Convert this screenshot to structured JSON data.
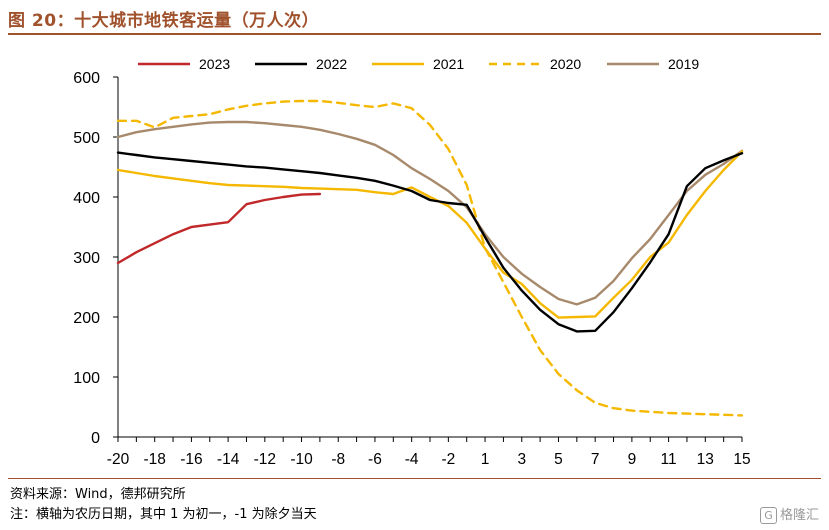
{
  "title": "图 20：十大城市地铁客运量（万人次）",
  "source": "资料来源：Wind，德邦研究所",
  "note": "注：横轴为农历日期，其中 1 为初一，-1 为除夕当天",
  "watermark": {
    "icon": "G",
    "text": "格隆汇"
  },
  "colors": {
    "title": "#a0522d",
    "rule": "#a0522d"
  },
  "chart_data": {
    "type": "line",
    "title": "",
    "xlabel": "",
    "ylabel": "",
    "ylim": [
      0,
      600
    ],
    "yticks": [
      0,
      100,
      200,
      300,
      400,
      500,
      600
    ],
    "xlim": [
      -20,
      15
    ],
    "xtick_labels": [
      "-20",
      "-18",
      "-16",
      "-14",
      "-12",
      "-10",
      "-8",
      "-6",
      "-4",
      "-2",
      "1",
      "3",
      "5",
      "7",
      "9",
      "11",
      "13",
      "15"
    ],
    "grid": false,
    "legend_position": "top",
    "series": [
      {
        "name": "2023",
        "color": "#c0282a",
        "dash": false,
        "x": [
          -20,
          -19,
          -18,
          -17,
          -16,
          -15,
          -14,
          -13,
          -12,
          -11,
          -10,
          -9
        ],
        "y": [
          290,
          308,
          323,
          338,
          350,
          354,
          358,
          388,
          395,
          400,
          404,
          405
        ]
      },
      {
        "name": "2022",
        "color": "#000000",
        "dash": false,
        "x": [
          -20,
          -19,
          -18,
          -17,
          -16,
          -15,
          -14,
          -13,
          -12,
          -11,
          -10,
          -9,
          -8,
          -7,
          -6,
          -5,
          -4,
          -3,
          -2,
          -1,
          1,
          2,
          3,
          4,
          5,
          6,
          7,
          8,
          9,
          10,
          11,
          12,
          13,
          14,
          15
        ],
        "y": [
          474,
          470,
          466,
          463,
          460,
          457,
          454,
          451,
          449,
          446,
          443,
          440,
          436,
          432,
          427,
          419,
          410,
          395,
          390,
          387,
          333,
          282,
          244,
          212,
          188,
          176,
          177,
          208,
          248,
          291,
          338,
          418,
          448,
          461,
          473
        ]
      },
      {
        "name": "2021",
        "color": "#f5b800",
        "dash": false,
        "x": [
          -20,
          -19,
          -18,
          -17,
          -16,
          -15,
          -14,
          -13,
          -12,
          -11,
          -10,
          -9,
          -8,
          -7,
          -6,
          -5,
          -4,
          -3,
          -2,
          -1,
          1,
          2,
          3,
          4,
          5,
          6,
          7,
          8,
          9,
          10,
          11,
          12,
          13,
          14,
          15
        ],
        "y": [
          445,
          440,
          435,
          431,
          427,
          423,
          420,
          419,
          418,
          417,
          415,
          414,
          413,
          412,
          408,
          405,
          416,
          400,
          385,
          357,
          314,
          274,
          255,
          223,
          199,
          200,
          201,
          232,
          262,
          300,
          324,
          370,
          410,
          445,
          476
        ]
      },
      {
        "name": "2020",
        "color": "#f5b800",
        "dash": true,
        "x": [
          -20,
          -19,
          -18,
          -17,
          -16,
          -15,
          -14,
          -13,
          -12,
          -11,
          -10,
          -9,
          -8,
          -7,
          -6,
          -5,
          -4,
          -3,
          -2,
          -1,
          1,
          2,
          3,
          4,
          5,
          6,
          7,
          8,
          9,
          10,
          11,
          12,
          13,
          14,
          15
        ],
        "y": [
          527,
          527,
          516,
          532,
          535,
          538,
          546,
          552,
          556,
          559,
          560,
          560,
          557,
          553,
          550,
          556,
          548,
          520,
          480,
          420,
          315,
          258,
          200,
          145,
          105,
          78,
          57,
          48,
          44,
          42,
          40,
          39,
          38,
          37,
          36
        ]
      },
      {
        "name": "2019",
        "color": "#a7896b",
        "dash": false,
        "x": [
          -20,
          -19,
          -18,
          -17,
          -16,
          -15,
          -14,
          -13,
          -12,
          -11,
          -10,
          -9,
          -8,
          -7,
          -6,
          -5,
          -4,
          -3,
          -2,
          -1,
          1,
          2,
          3,
          4,
          5,
          6,
          7,
          8,
          9,
          10,
          11,
          12,
          13,
          14,
          15
        ],
        "y": [
          500,
          508,
          513,
          517,
          521,
          524,
          525,
          525,
          523,
          520,
          517,
          512,
          505,
          497,
          487,
          470,
          448,
          430,
          410,
          383,
          338,
          300,
          272,
          250,
          230,
          221,
          232,
          260,
          298,
          330,
          370,
          410,
          437,
          455,
          477
        ]
      }
    ]
  }
}
